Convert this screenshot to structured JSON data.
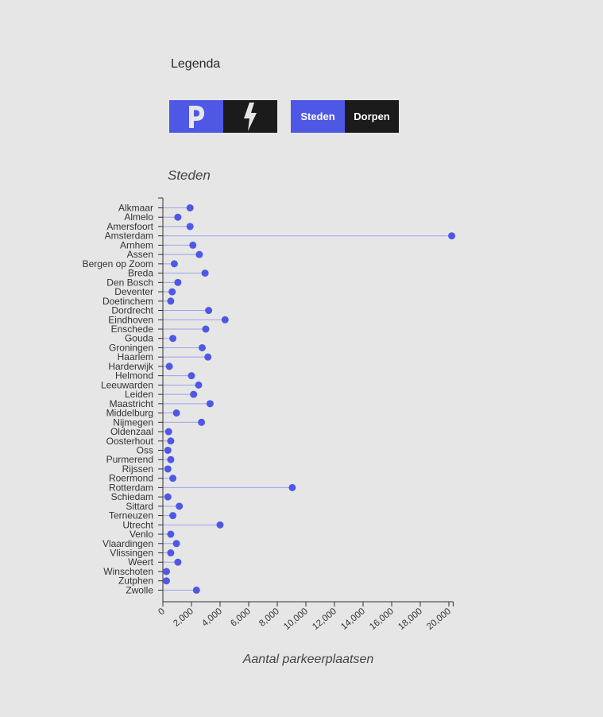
{
  "legend": {
    "title": "Legenda",
    "type_toggle": {
      "parking_icon": "parking-icon",
      "charging_icon": "lightning-icon"
    },
    "area_toggle": {
      "cities_label": "Steden",
      "villages_label": "Dorpen"
    }
  },
  "section_title": "Steden",
  "colors": {
    "accent": "#4f58e4",
    "dark": "#1b1b1b",
    "line": "#9ba2ef",
    "background": "#e6e6e6"
  },
  "chart_data": {
    "type": "lollipop",
    "orientation": "horizontal",
    "xlabel": "Aantal parkeerplaatsen",
    "xlim": [
      0,
      20300
    ],
    "xticks": [
      0,
      2000,
      4000,
      6000,
      8000,
      10000,
      12000,
      14000,
      16000,
      18000,
      20000
    ],
    "xtick_labels": [
      "0",
      "2,000",
      "4,000",
      "6,000",
      "8,000",
      "10,000",
      "12,000",
      "14,000",
      "16,000",
      "18,000",
      "20,000"
    ],
    "categories": [
      "Alkmaar",
      "Almelo",
      "Amersfoort",
      "Amsterdam",
      "Arnhem",
      "Assen",
      "Bergen op Zoom",
      "Breda",
      "Den Bosch",
      "Deventer",
      "Doetinchem",
      "Dordrecht",
      "Eindhoven",
      "Enschede",
      "Gouda",
      "Groningen",
      "Haarlem",
      "Harderwijk",
      "Helmond",
      "Leeuwarden",
      "Leiden",
      "Maastricht",
      "Middelburg",
      "Nijmegen",
      "Oldenzaal",
      "Oosterhout",
      "Oss",
      "Purmerend",
      "Rijssen",
      "Roermond",
      "Rotterdam",
      "Schiedam",
      "Sittard",
      "Terneuzen",
      "Utrecht",
      "Venlo",
      "Vlaardingen",
      "Vlissingen",
      "Weert",
      "Winschoten",
      "Zutphen",
      "Zwolle"
    ],
    "values": [
      1900,
      1050,
      1900,
      20200,
      2100,
      2550,
      800,
      2950,
      1050,
      650,
      550,
      3200,
      4350,
      3000,
      700,
      2750,
      3150,
      450,
      2000,
      2500,
      2150,
      3300,
      950,
      2700,
      400,
      550,
      350,
      550,
      350,
      700,
      9050,
      350,
      1150,
      700,
      4000,
      550,
      950,
      550,
      1050,
      250,
      250,
      2350
    ]
  }
}
